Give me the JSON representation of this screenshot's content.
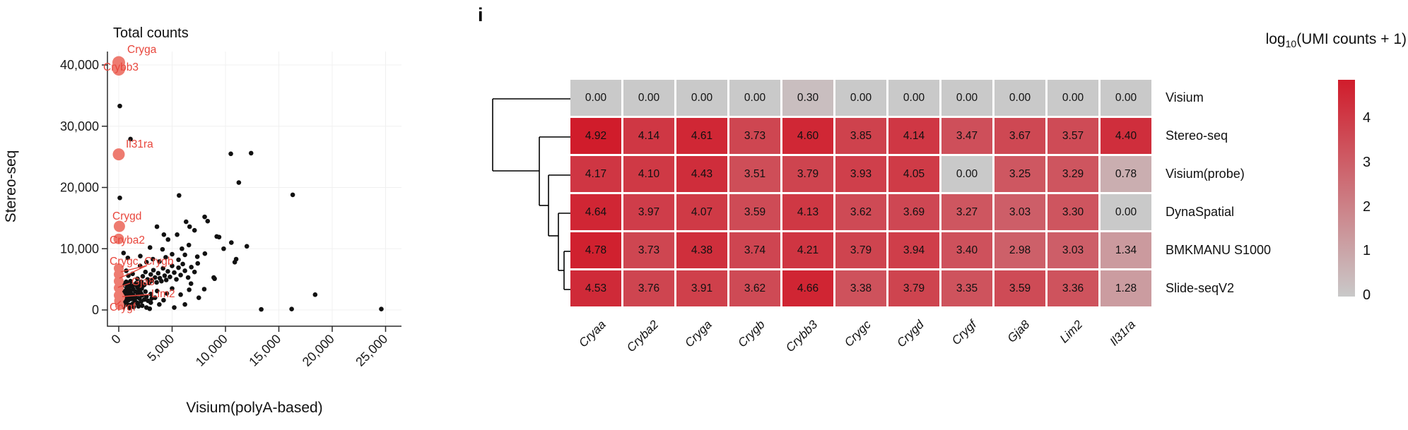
{
  "panel_label": "i",
  "chart_data": [
    {
      "type": "scatter",
      "title": "Total counts",
      "xlabel": "Visium(polyA-based)",
      "ylabel": "Stereo-seq",
      "xlim": [
        0,
        26500
      ],
      "ylim": [
        0,
        42000
      ],
      "grid": true,
      "x_ticks": [
        0,
        5000,
        10000,
        15000,
        20000,
        25000
      ],
      "x_tick_labels": [
        "0",
        "5,000",
        "10,000",
        "15,000",
        "20,000",
        "25,000"
      ],
      "y_ticks": [
        0,
        10000,
        20000,
        30000,
        40000
      ],
      "y_tick_labels": [
        "0",
        "10,000",
        "20,000",
        "30,000",
        "40,000"
      ],
      "point_color": "#111111",
      "highlight_color": "#ee7b70",
      "label_color": "#e8463c",
      "highlighted_points": [
        [
          0,
          40400,
          9
        ],
        [
          0,
          39300,
          9
        ],
        [
          0,
          25400,
          8.5
        ],
        [
          60,
          13650,
          8
        ],
        [
          0,
          11600,
          7.5
        ],
        [
          0,
          6800,
          7
        ],
        [
          0,
          5800,
          7
        ],
        [
          0,
          4700,
          7
        ],
        [
          0,
          3600,
          7
        ],
        [
          0,
          2400,
          7
        ],
        [
          160,
          2050,
          6.5
        ],
        [
          0,
          1500,
          6.5
        ],
        [
          90,
          750,
          6.5
        ]
      ],
      "annotations": [
        {
          "text": "Cryga",
          "x": 180,
          "y": 70
        },
        {
          "text": "Crybb3",
          "x": 146,
          "y": 95
        },
        {
          "text": "Il31ra",
          "x": 178,
          "y": 204
        },
        {
          "text": "Crygd",
          "x": 159,
          "y": 306
        },
        {
          "text": "Cryba2",
          "x": 155,
          "y": 340
        },
        {
          "text": "Crygc, Crygb",
          "x": 155,
          "y": 370
        },
        {
          "text": "Gja8",
          "x": 186,
          "y": 399
        },
        {
          "text": "Lim2",
          "x": 214,
          "y": 416
        },
        {
          "text": "Crygf",
          "x": 155,
          "y": 435
        }
      ],
      "leader_lines": [
        [
          208,
          376,
          171,
          385
        ],
        [
          208,
          376,
          169,
          394
        ],
        [
          184,
          401,
          167,
          407
        ],
        [
          212,
          417,
          173,
          420
        ],
        [
          166,
          431,
          171,
          426
        ]
      ],
      "points": [
        [
          150,
          38900
        ],
        [
          100,
          33300
        ],
        [
          1100,
          27900
        ],
        [
          10500,
          25500
        ],
        [
          12400,
          25600
        ],
        [
          11250,
          20800
        ],
        [
          16300,
          18800
        ],
        [
          100,
          18300
        ],
        [
          5650,
          18700
        ],
        [
          8050,
          15200
        ],
        [
          6310,
          14400
        ],
        [
          8330,
          14500
        ],
        [
          3580,
          13600
        ],
        [
          6640,
          13600
        ],
        [
          7100,
          13000
        ],
        [
          4230,
          12300
        ],
        [
          5470,
          12300
        ],
        [
          9180,
          12000
        ],
        [
          9400,
          11900
        ],
        [
          4620,
          11500
        ],
        [
          10550,
          11000
        ],
        [
          6570,
          10600
        ],
        [
          9830,
          10000
        ],
        [
          12000,
          10400
        ],
        [
          10870,
          7800
        ],
        [
          8070,
          9200
        ],
        [
          7360,
          8700
        ],
        [
          5920,
          10000
        ],
        [
          4100,
          9900
        ],
        [
          2930,
          10200
        ],
        [
          2020,
          8800
        ],
        [
          850,
          8500
        ],
        [
          450,
          9300
        ],
        [
          8980,
          5100
        ],
        [
          8010,
          3400
        ],
        [
          6770,
          4300
        ],
        [
          8900,
          5300
        ],
        [
          18400,
          2500
        ],
        [
          13350,
          100
        ],
        [
          16200,
          150
        ],
        [
          24600,
          150
        ],
        [
          11000,
          8300
        ],
        [
          1600,
          4200
        ],
        [
          1750,
          5100
        ],
        [
          1900,
          3800
        ],
        [
          2100,
          4600
        ],
        [
          2250,
          5500
        ],
        [
          2400,
          4100
        ],
        [
          2500,
          6200
        ],
        [
          2700,
          5000
        ],
        [
          2850,
          4400
        ],
        [
          3000,
          5800
        ],
        [
          3100,
          4800
        ],
        [
          3250,
          6500
        ],
        [
          3400,
          5300
        ],
        [
          3550,
          4500
        ],
        [
          3700,
          6000
        ],
        [
          3850,
          5200
        ],
        [
          4000,
          4700
        ],
        [
          4150,
          6800
        ],
        [
          4300,
          5600
        ],
        [
          4450,
          4900
        ],
        [
          4600,
          6300
        ],
        [
          4800,
          5400
        ],
        [
          5000,
          7200
        ],
        [
          5200,
          6100
        ],
        [
          5400,
          5000
        ],
        [
          5600,
          6900
        ],
        [
          5800,
          5700
        ],
        [
          6000,
          7500
        ],
        [
          6200,
          6400
        ],
        [
          6500,
          5300
        ],
        [
          6800,
          7000
        ],
        [
          7100,
          6200
        ],
        [
          7400,
          7600
        ],
        [
          2000,
          7200
        ],
        [
          2600,
          7800
        ],
        [
          3200,
          8300
        ],
        [
          3800,
          7900
        ],
        [
          4400,
          8600
        ],
        [
          5000,
          9100
        ],
        [
          5600,
          8200
        ],
        [
          6200,
          9000
        ],
        [
          1300,
          5900
        ],
        [
          1100,
          4700
        ],
        [
          900,
          5600
        ],
        [
          700,
          6400
        ],
        [
          3000,
          2600
        ],
        [
          3600,
          3100
        ],
        [
          4500,
          2700
        ],
        [
          5000,
          3500
        ],
        [
          5800,
          2500
        ],
        [
          6600,
          3300
        ],
        [
          7500,
          2000
        ],
        [
          100,
          400
        ],
        [
          150,
          900
        ],
        [
          200,
          1500
        ],
        [
          250,
          600
        ],
        [
          300,
          2100
        ],
        [
          350,
          1100
        ],
        [
          400,
          2800
        ],
        [
          450,
          1700
        ],
        [
          500,
          700
        ],
        [
          550,
          2400
        ],
        [
          600,
          3100
        ],
        [
          650,
          1300
        ],
        [
          700,
          2000
        ],
        [
          750,
          3600
        ],
        [
          800,
          900
        ],
        [
          850,
          2700
        ],
        [
          900,
          1600
        ],
        [
          950,
          3300
        ],
        [
          1000,
          2200
        ],
        [
          1050,
          800
        ],
        [
          1100,
          2900
        ],
        [
          1150,
          3900
        ],
        [
          1200,
          1800
        ],
        [
          1250,
          2500
        ],
        [
          1300,
          1000
        ],
        [
          1350,
          3400
        ],
        [
          1400,
          2300
        ],
        [
          1450,
          4100
        ],
        [
          1500,
          1500
        ],
        [
          1550,
          3000
        ],
        [
          1600,
          2000
        ],
        [
          1650,
          4400
        ],
        [
          1700,
          1200
        ],
        [
          1750,
          3700
        ],
        [
          1800,
          2600
        ],
        [
          1850,
          600
        ],
        [
          1900,
          3200
        ],
        [
          1950,
          1900
        ],
        [
          2000,
          4300
        ],
        [
          2050,
          2800
        ],
        [
          2100,
          1400
        ],
        [
          2150,
          3500
        ],
        [
          2200,
          2400
        ],
        [
          2300,
          4000
        ],
        [
          2400,
          1700
        ],
        [
          2500,
          3000
        ],
        [
          2600,
          2200
        ],
        [
          300,
          3800
        ],
        [
          500,
          4300
        ],
        [
          700,
          4600
        ],
        [
          900,
          4000
        ],
        [
          1050,
          4500
        ],
        [
          400,
          500
        ],
        [
          600,
          1800
        ],
        [
          800,
          3900
        ],
        [
          1000,
          300
        ],
        [
          1400,
          500
        ],
        [
          1800,
          900
        ],
        [
          2200,
          700
        ],
        [
          2600,
          400
        ],
        [
          3000,
          1200
        ],
        [
          3400,
          2000
        ],
        [
          3800,
          900
        ],
        [
          4200,
          1600
        ],
        [
          5200,
          400
        ],
        [
          6200,
          900
        ],
        [
          2900,
          200
        ],
        [
          2750,
          1500
        ],
        [
          3100,
          1900
        ]
      ]
    },
    {
      "type": "heatmap",
      "legend_title": {
        "prefix": "log",
        "sub": "10",
        "suffix": "(UMI counts + 1)"
      },
      "columns": [
        "Cryaa",
        "Cryba2",
        "Cryga",
        "Crygb",
        "Crybb3",
        "Crygc",
        "Crygd",
        "Crygf",
        "Gja8",
        "Lim2",
        "Il31ra"
      ],
      "rows": [
        "Visium",
        "Stereo-seq",
        "Visium(probe)",
        "DynaSpatial",
        "BMKMANU S1000",
        "Slide-seqV2"
      ],
      "values": [
        [
          0.0,
          0.0,
          0.0,
          0.0,
          0.3,
          0.0,
          0.0,
          0.0,
          0.0,
          0.0,
          0.0
        ],
        [
          4.92,
          4.14,
          4.61,
          3.73,
          4.6,
          3.85,
          4.14,
          3.47,
          3.67,
          3.57,
          4.4
        ],
        [
          4.17,
          4.1,
          4.43,
          3.51,
          3.79,
          3.93,
          4.05,
          0.0,
          3.25,
          3.29,
          0.78
        ],
        [
          4.64,
          3.97,
          4.07,
          3.59,
          4.13,
          3.62,
          3.69,
          3.27,
          3.03,
          3.3,
          0.0
        ],
        [
          4.78,
          3.73,
          4.38,
          3.74,
          4.21,
          3.79,
          3.94,
          3.4,
          2.98,
          3.03,
          1.34
        ],
        [
          4.53,
          3.76,
          3.91,
          3.62,
          4.66,
          3.38,
          3.79,
          3.35,
          3.59,
          3.36,
          1.28
        ]
      ],
      "vmin": 0,
      "vmax": 4.92,
      "color_low": "#c9c9c9",
      "color_high": "#d01c2b",
      "colorbar_ticks": [
        4,
        3,
        2,
        1,
        0
      ],
      "dendrogram_segments": [
        [
          697,
          140,
          807,
          140
        ],
        [
          697,
          140,
          697,
          242
        ],
        [
          697,
          242,
          763,
          242
        ],
        [
          763,
          194,
          807,
          194
        ],
        [
          763,
          194,
          763,
          291
        ],
        [
          763,
          291,
          776,
          291
        ],
        [
          776,
          248,
          807,
          248
        ],
        [
          776,
          248,
          776,
          334
        ],
        [
          776,
          334,
          790,
          334
        ],
        [
          790,
          302,
          807,
          302
        ],
        [
          790,
          302,
          790,
          383
        ],
        [
          790,
          383,
          798,
          383
        ],
        [
          798,
          356,
          807,
          356
        ],
        [
          798,
          356,
          798,
          410
        ],
        [
          798,
          410,
          807,
          410
        ]
      ]
    }
  ]
}
